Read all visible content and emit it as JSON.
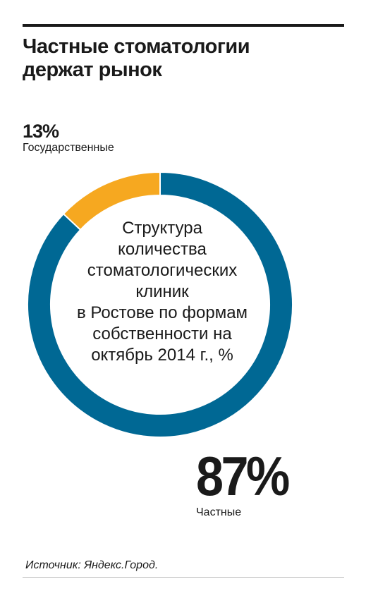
{
  "header": {
    "title_line1": "Частные стоматологии",
    "title_line2": "держат рынок"
  },
  "colors": {
    "private": "#006894",
    "state": "#f6a820",
    "text": "#1a1a1a"
  },
  "chart_data": {
    "type": "pie",
    "style": "donut",
    "title": "Структура количества стоматологических клиник в Ростове по формам собственности на октябрь 2014 г., %",
    "title_lines": [
      "Структура",
      "количества",
      "стоматологических",
      "клиник",
      "в Ростове по формам",
      "собственности на",
      "октябрь 2014 г., %"
    ],
    "slices": [
      {
        "label": "Государственные",
        "value": 13,
        "display": "13%"
      },
      {
        "label": "Частные",
        "value": 87,
        "display": "87%"
      }
    ]
  },
  "footer": {
    "source": "Источник: Яндекс.Город."
  }
}
